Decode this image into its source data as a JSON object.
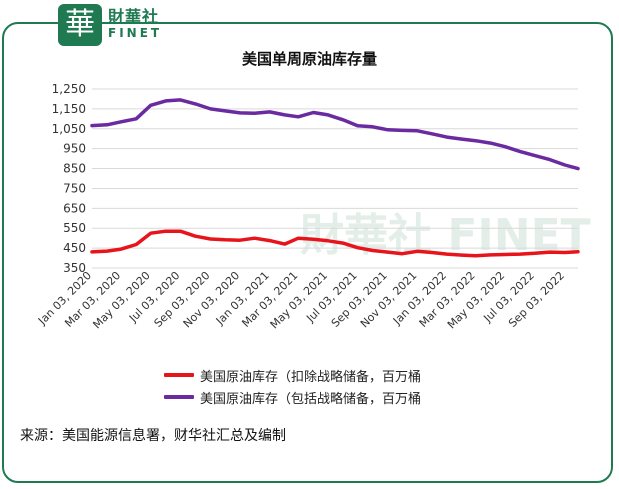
{
  "brand": {
    "logo_char": "華",
    "name_cn": "財華社",
    "name_en": "FINET",
    "accent": "#1f7a52"
  },
  "chart_data": {
    "type": "line",
    "title": "美国单周原油库存量",
    "ylim": [
      350,
      1250
    ],
    "yticks": [
      "350",
      "450",
      "550",
      "650",
      "750",
      "850",
      "950",
      "1,050",
      "1,150",
      "1,250"
    ],
    "ytick_values": [
      350,
      450,
      550,
      650,
      750,
      850,
      950,
      1050,
      1150,
      1250
    ],
    "xticks": [
      "Jan 03, 2020",
      "Mar 03, 2020",
      "May 03, 2020",
      "Jul 03, 2020",
      "Sep 03, 2020",
      "Nov 03, 2020",
      "Jan 03, 2021",
      "Mar 03, 2021",
      "May 03, 2021",
      "Jul 03, 2021",
      "Sep 03, 2021",
      "Nov 03, 2021",
      "Jan 03, 2022",
      "Mar 03, 2022",
      "May 03, 2022",
      "Jul 03, 2022",
      "Sep 03, 2022"
    ],
    "x": [
      "Jan 03, 2020",
      "Feb 03, 2020",
      "Mar 03, 2020",
      "Apr 03, 2020",
      "May 03, 2020",
      "Jun 03, 2020",
      "Jul 03, 2020",
      "Aug 03, 2020",
      "Sep 03, 2020",
      "Oct 03, 2020",
      "Nov 03, 2020",
      "Dec 03, 2020",
      "Jan 03, 2021",
      "Feb 03, 2021",
      "Mar 03, 2021",
      "Apr 03, 2021",
      "May 03, 2021",
      "Jun 03, 2021",
      "Jul 03, 2021",
      "Aug 03, 2021",
      "Sep 03, 2021",
      "Oct 03, 2021",
      "Nov 03, 2021",
      "Dec 03, 2021",
      "Jan 03, 2022",
      "Feb 03, 2022",
      "Mar 03, 2022",
      "Apr 03, 2022",
      "May 03, 2022",
      "Jun 03, 2022",
      "Jul 03, 2022",
      "Aug 03, 2022",
      "Sep 03, 2022",
      "Sep 30, 2022"
    ],
    "series": [
      {
        "name": "美国原油库存（扣除战略储备，百万桶",
        "color": "#e8141b",
        "values": [
          431,
          435,
          445,
          468,
          525,
          535,
          535,
          510,
          496,
          492,
          490,
          500,
          488,
          470,
          500,
          495,
          487,
          475,
          452,
          438,
          430,
          422,
          434,
          428,
          420,
          415,
          412,
          416,
          418,
          420,
          424,
          430,
          428,
          432
        ]
      },
      {
        "name": "美国原油库存（包括战略储备，百万桶",
        "color": "#6a2aa0",
        "values": [
          1066,
          1070,
          1085,
          1100,
          1168,
          1190,
          1195,
          1175,
          1150,
          1140,
          1130,
          1128,
          1135,
          1120,
          1110,
          1132,
          1120,
          1095,
          1065,
          1060,
          1045,
          1042,
          1040,
          1025,
          1008,
          998,
          990,
          978,
          960,
          935,
          915,
          895,
          868,
          850
        ]
      }
    ],
    "grid": true,
    "legend_position": "bottom",
    "watermark_text": "財華社 FINET"
  },
  "source": "来源：美国能源信息署，财华社汇总及编制"
}
